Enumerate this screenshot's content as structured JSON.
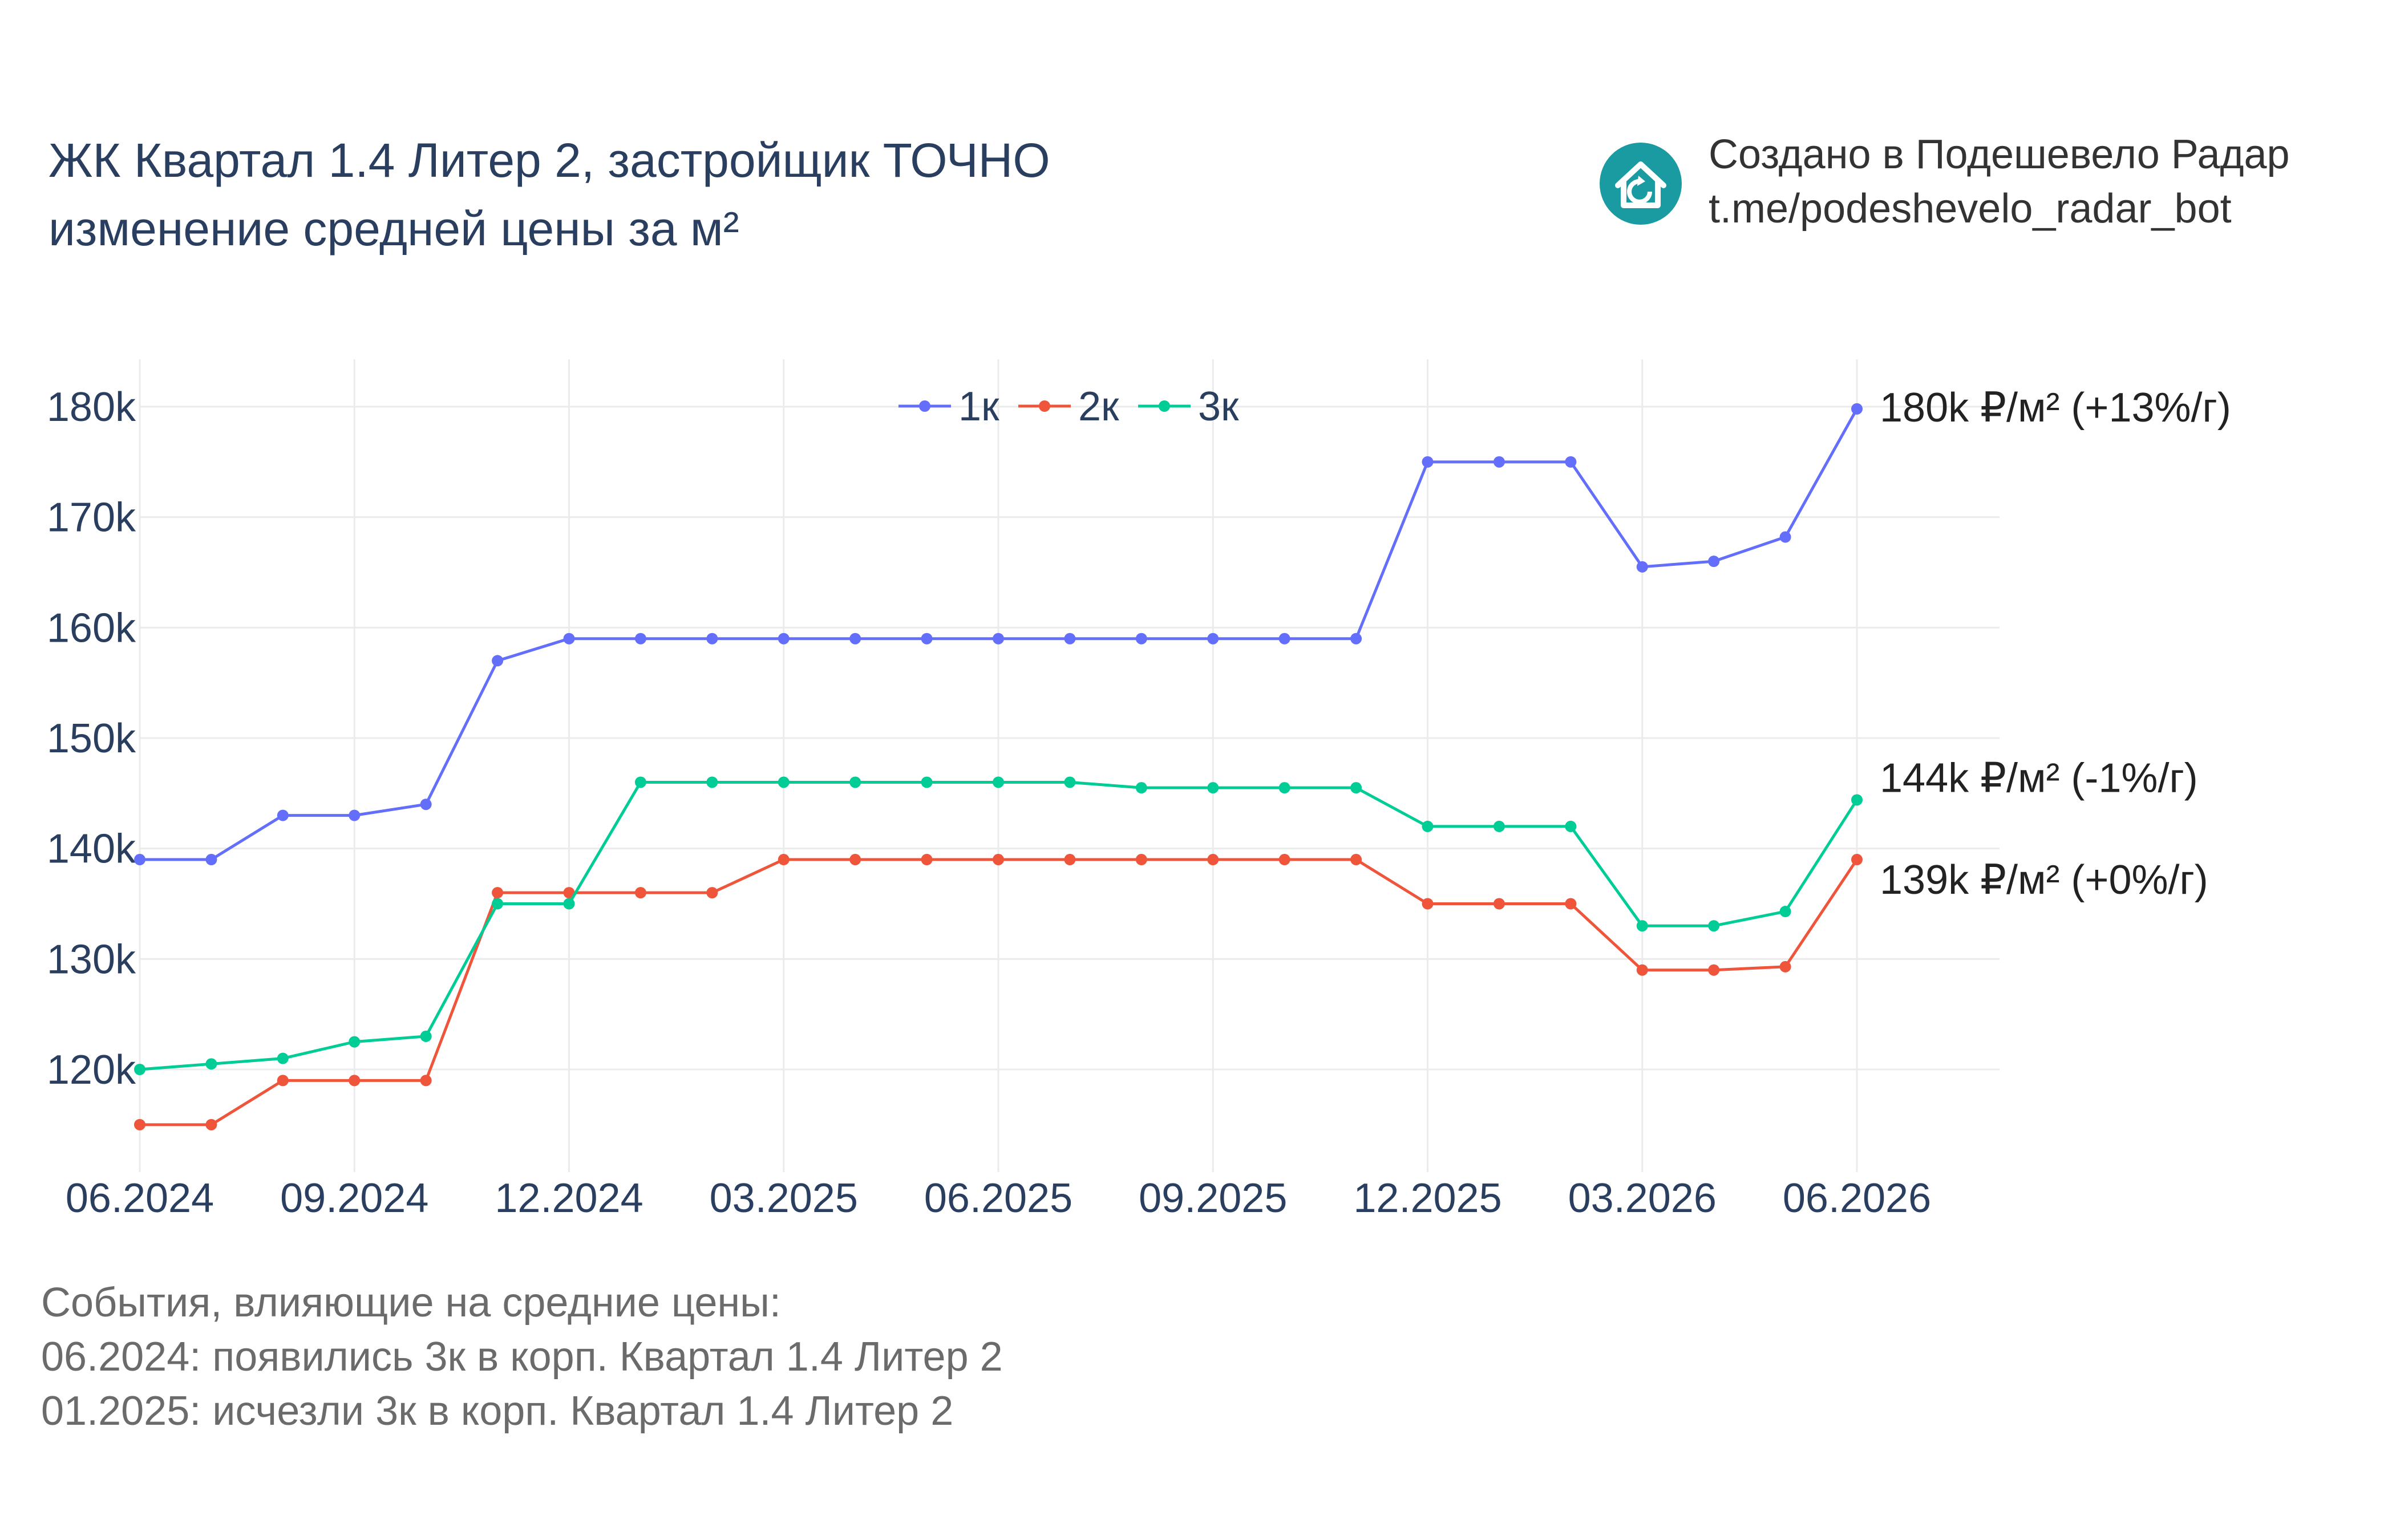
{
  "header": {
    "title_line1": "ЖК Квартал 1.4 Литер 2, застройщик ТОЧНО",
    "title_line2": "изменение средней цены за м²"
  },
  "brand": {
    "line1": "Создано в Подешевело Радар",
    "line2": "t.me/podeshevelo_radar_bot",
    "icon": "house-refresh-icon",
    "icon_color": "#1a9ba1"
  },
  "events": {
    "heading": "События, влияющие на средние цены:",
    "items": [
      "06.2024: появились 3к в корп. Квартал 1.4 Литер 2",
      "01.2025: исчезли 3к в корп. Квартал 1.4 Литер 2"
    ]
  },
  "chart_data": {
    "type": "line",
    "x": [
      "06.2024",
      "07.2024",
      "08.2024",
      "09.2024",
      "10.2024",
      "11.2024",
      "12.2024",
      "01.2025",
      "02.2025",
      "03.2025",
      "04.2025",
      "05.2025",
      "06.2025",
      "07.2025",
      "08.2025",
      "09.2025",
      "10.2025",
      "11.2025",
      "12.2025",
      "01.2026",
      "02.2026",
      "03.2026",
      "04.2026",
      "05.2026",
      "06.2026"
    ],
    "x_ticks": [
      "06.2024",
      "09.2024",
      "12.2024",
      "03.2025",
      "06.2025",
      "09.2025",
      "12.2025",
      "03.2026",
      "06.2026"
    ],
    "y_ticks": [
      120000,
      130000,
      140000,
      150000,
      160000,
      170000,
      180000
    ],
    "y_tick_labels": [
      "120k",
      "130k",
      "140k",
      "150k",
      "160k",
      "170k",
      "180k"
    ],
    "ylim": [
      111000,
      184000
    ],
    "grid": true,
    "legend_position": "top-center",
    "series": [
      {
        "name": "1к",
        "color": "#636efa",
        "end_label": "180k ₽/м² (+13%/г)",
        "values": [
          139000,
          139000,
          143000,
          143000,
          144000,
          157000,
          159000,
          159000,
          159000,
          159000,
          159000,
          159000,
          159000,
          159000,
          159000,
          159000,
          159000,
          159000,
          175000,
          175000,
          175000,
          165500,
          166000,
          168200,
          179800
        ]
      },
      {
        "name": "2к",
        "color": "#ef553b",
        "end_label": "139k ₽/м² (+0%/г)",
        "values": [
          115000,
          115000,
          119000,
          119000,
          119000,
          136000,
          136000,
          136000,
          136000,
          139000,
          139000,
          139000,
          139000,
          139000,
          139000,
          139000,
          139000,
          139000,
          135000,
          135000,
          135000,
          129000,
          129000,
          129300,
          139000
        ]
      },
      {
        "name": "3к",
        "color": "#00cc96",
        "end_label": "144k ₽/м² (-1%/г)",
        "values": [
          120000,
          120500,
          121000,
          122500,
          123000,
          135000,
          135000,
          146000,
          146000,
          146000,
          146000,
          146000,
          146000,
          146000,
          145500,
          145500,
          145500,
          145500,
          142000,
          142000,
          142000,
          133000,
          133000,
          134300,
          144400
        ]
      }
    ]
  }
}
